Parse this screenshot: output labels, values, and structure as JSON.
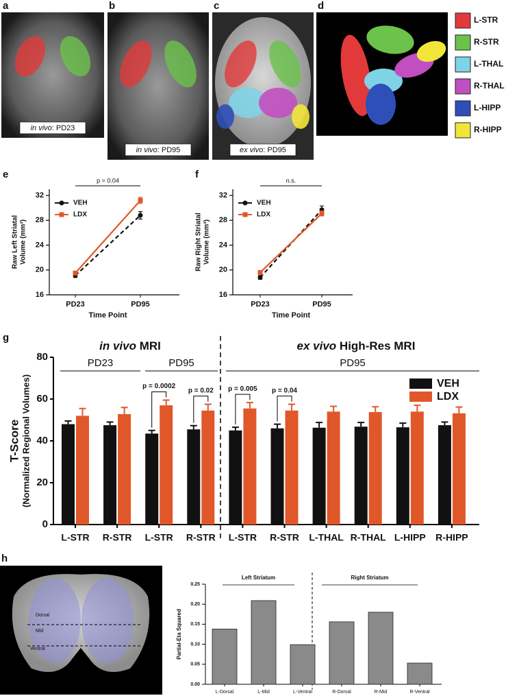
{
  "images": [
    {
      "label": "a",
      "caption_italic": "in vivo",
      "caption": ": PD23"
    },
    {
      "label": "b",
      "caption_italic": "in vivo",
      "caption": ": PD95"
    },
    {
      "label": "c",
      "caption_italic": "ex vivo",
      "caption": ": PD95"
    },
    {
      "label": "d",
      "legend": [
        {
          "name": "L-STR",
          "color": "#e23a3a"
        },
        {
          "name": "R-STR",
          "color": "#6cc24a"
        },
        {
          "name": "L-THAL",
          "color": "#7fd3e6"
        },
        {
          "name": "R-THAL",
          "color": "#c14fc1"
        },
        {
          "name": "L-HIPP",
          "color": "#2f4fb8"
        },
        {
          "name": "R-HIPP",
          "color": "#f2e53a"
        }
      ]
    },
    {
      "label": "h",
      "regions": [
        "Dorsal",
        "Mid",
        "Ventral"
      ]
    }
  ],
  "chart_data": [
    {
      "type": "line",
      "panel": "e",
      "annotation": "p = 0.04",
      "xlabel": "Time Point",
      "ylabel": [
        "Raw Left Striatal",
        "Volume (mm³)"
      ],
      "categories": [
        "PD23",
        "PD95"
      ],
      "ylim": [
        16,
        33
      ],
      "yticks": [
        16,
        20,
        24,
        28,
        32
      ],
      "series": [
        {
          "name": "VEH",
          "color": "#111111",
          "linestyle": "dashed",
          "marker": "circle",
          "values": [
            19.1,
            28.8
          ],
          "errors": [
            0.3,
            0.6
          ]
        },
        {
          "name": "LDX",
          "color": "#e0582a",
          "linestyle": "solid",
          "marker": "square",
          "values": [
            19.5,
            31.2
          ],
          "errors": [
            0.2,
            0.5
          ]
        }
      ]
    },
    {
      "type": "line",
      "panel": "f",
      "annotation": "n.s.",
      "xlabel": "Time Point",
      "ylabel": [
        "Raw Right Striatal",
        "Volume (mm³)"
      ],
      "categories": [
        "PD23",
        "PD95"
      ],
      "ylim": [
        16,
        33
      ],
      "yticks": [
        16,
        20,
        24,
        28,
        32
      ],
      "series": [
        {
          "name": "VEH",
          "color": "#111111",
          "linestyle": "dashed",
          "marker": "circle",
          "values": [
            18.8,
            29.7
          ],
          "errors": [
            0.3,
            0.6
          ]
        },
        {
          "name": "LDX",
          "color": "#e0582a",
          "linestyle": "solid",
          "marker": "square",
          "values": [
            19.6,
            29.1
          ],
          "errors": [
            0.2,
            0.4
          ]
        }
      ]
    },
    {
      "type": "grouped-bar",
      "panel": "g",
      "ylabel": [
        "T-Score",
        "(Normalized Regional Volumes)"
      ],
      "groups": [
        {
          "title_italic": "in vivo",
          "title": " MRI",
          "subgroups": [
            "PD23",
            "PD95"
          ]
        },
        {
          "title_italic": "ex vivo",
          "title": " High-Res MRI",
          "subgroups": [
            "PD95"
          ]
        }
      ],
      "categories": [
        "L-STR",
        "R-STR",
        "L-STR",
        "R-STR",
        "L-STR",
        "R-STR",
        "L-THAL",
        "R-THAL",
        "L-HIPP",
        "R-HIPP"
      ],
      "ylim": [
        0,
        80
      ],
      "yticks": [
        0,
        20,
        40,
        60,
        80
      ],
      "series": [
        {
          "name": "VEH",
          "color": "#111111",
          "values": [
            48,
            47.5,
            43.5,
            45.5,
            45,
            46,
            46.3,
            46.8,
            46.5,
            47.5
          ],
          "errors": [
            1.5,
            1.5,
            1.5,
            1.8,
            1.5,
            2,
            2.5,
            2,
            2,
            1.5
          ]
        },
        {
          "name": "LDX",
          "color": "#e0582a",
          "values": [
            52,
            52.8,
            57,
            54.5,
            55.5,
            54.5,
            54,
            53.8,
            54,
            53.2
          ],
          "errors": [
            3.5,
            3.2,
            2.5,
            3,
            2.8,
            3,
            2.5,
            2.5,
            3,
            3
          ]
        }
      ],
      "annotations": [
        "p = 0.0002",
        "p = 0.02",
        "p = 0.005",
        "p = 0.04"
      ]
    },
    {
      "type": "bar",
      "ylabel": "Partial-Eta Squared",
      "groups": [
        "Left Striatum",
        "Right Striatum"
      ],
      "categories": [
        "L-Dorsal",
        "L-Mid",
        "L-Ventral",
        "R-Dorsal",
        "R-Mid",
        "R-Ventral"
      ],
      "values": [
        0.138,
        0.209,
        0.099,
        0.156,
        0.18,
        0.053
      ],
      "color": "#8a8a8a",
      "ylim": [
        0,
        0.25
      ],
      "yticks": [
        {
          "value": 0,
          "label": "0.00"
        },
        0.05,
        {
          "value": 0.1,
          "label": "0.10"
        },
        0.15,
        {
          "value": 0.2,
          "label": "0.20"
        },
        0.25
      ]
    }
  ]
}
